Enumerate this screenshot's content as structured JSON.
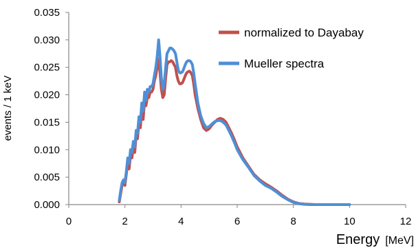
{
  "chart_data": {
    "type": "line",
    "xlabel": "Energy",
    "xlabel_unit": "[MeV]",
    "ylabel": "events / 1 keV",
    "xlim": [
      0,
      12
    ],
    "ylim": [
      0,
      0.035
    ],
    "xticks": [
      0,
      2,
      4,
      6,
      8,
      10,
      12
    ],
    "xtick_labels": [
      "0",
      "2",
      "4",
      "6",
      "8",
      "10",
      "12"
    ],
    "yticks": [
      0,
      0.005,
      0.01,
      0.015,
      0.02,
      0.025,
      0.03,
      0.035
    ],
    "ytick_labels": [
      "0.000",
      "0.005",
      "0.010",
      "0.015",
      "0.020",
      "0.025",
      "0.030",
      "0.035"
    ],
    "grid": false,
    "legend_position": "top-right",
    "series": [
      {
        "name": "normalized to Dayabay",
        "color": "#c0504d",
        "x": [
          1.8,
          1.85,
          1.9,
          1.95,
          2.0,
          2.05,
          2.1,
          2.15,
          2.2,
          2.25,
          2.3,
          2.35,
          2.4,
          2.45,
          2.5,
          2.55,
          2.6,
          2.65,
          2.7,
          2.75,
          2.8,
          2.85,
          2.9,
          2.95,
          3.0,
          3.05,
          3.1,
          3.15,
          3.2,
          3.25,
          3.3,
          3.35,
          3.4,
          3.45,
          3.5,
          3.55,
          3.6,
          3.65,
          3.7,
          3.75,
          3.8,
          3.85,
          3.9,
          3.95,
          4.0,
          4.05,
          4.1,
          4.15,
          4.2,
          4.25,
          4.3,
          4.35,
          4.4,
          4.45,
          4.5,
          4.6,
          4.7,
          4.8,
          4.9,
          5.0,
          5.1,
          5.2,
          5.3,
          5.4,
          5.5,
          5.6,
          5.7,
          5.8,
          5.9,
          6.0,
          6.2,
          6.4,
          6.6,
          6.8,
          7.0,
          7.2,
          7.4,
          7.6,
          7.8,
          8.0,
          8.2,
          8.4,
          8.6,
          8.8,
          9.0,
          9.5,
          10.0
        ],
        "y": [
          0.0005,
          0.002,
          0.0035,
          0.004,
          0.0035,
          0.0055,
          0.0075,
          0.0065,
          0.009,
          0.0085,
          0.0105,
          0.0095,
          0.0125,
          0.012,
          0.015,
          0.014,
          0.017,
          0.0155,
          0.019,
          0.018,
          0.0195,
          0.0195,
          0.0205,
          0.0205,
          0.021,
          0.0225,
          0.0235,
          0.025,
          0.0265,
          0.024,
          0.021,
          0.0195,
          0.02,
          0.023,
          0.0255,
          0.026,
          0.026,
          0.0262,
          0.026,
          0.0255,
          0.025,
          0.0235,
          0.0225,
          0.022,
          0.022,
          0.0222,
          0.0228,
          0.0235,
          0.024,
          0.0242,
          0.0243,
          0.024,
          0.0235,
          0.022,
          0.02,
          0.0175,
          0.0155,
          0.014,
          0.0135,
          0.0138,
          0.0145,
          0.015,
          0.0155,
          0.0157,
          0.0155,
          0.015,
          0.014,
          0.013,
          0.0118,
          0.0105,
          0.0085,
          0.007,
          0.0055,
          0.0045,
          0.0038,
          0.0032,
          0.0025,
          0.0017,
          0.001,
          0.0005,
          0.0002,
          0.0001,
          5e-05,
          0.0,
          0.0,
          0.0,
          0.0
        ]
      },
      {
        "name": "Mueller  spectra",
        "color": "#4f8fd6",
        "x": [
          1.8,
          1.85,
          1.9,
          1.95,
          2.0,
          2.05,
          2.1,
          2.15,
          2.2,
          2.25,
          2.3,
          2.35,
          2.4,
          2.45,
          2.5,
          2.55,
          2.6,
          2.65,
          2.7,
          2.75,
          2.8,
          2.85,
          2.9,
          2.95,
          3.0,
          3.05,
          3.1,
          3.15,
          3.2,
          3.25,
          3.3,
          3.35,
          3.4,
          3.45,
          3.5,
          3.55,
          3.6,
          3.65,
          3.7,
          3.75,
          3.8,
          3.85,
          3.9,
          3.95,
          4.0,
          4.05,
          4.1,
          4.15,
          4.2,
          4.25,
          4.3,
          4.35,
          4.4,
          4.45,
          4.5,
          4.6,
          4.7,
          4.8,
          4.9,
          5.0,
          5.1,
          5.2,
          5.3,
          5.4,
          5.5,
          5.6,
          5.7,
          5.8,
          5.9,
          6.0,
          6.2,
          6.4,
          6.6,
          6.8,
          7.0,
          7.2,
          7.4,
          7.6,
          7.8,
          8.0,
          8.2,
          8.4,
          8.6,
          8.8,
          9.0,
          9.5,
          10.0
        ],
        "y": [
          0.0008,
          0.0025,
          0.004,
          0.0045,
          0.004,
          0.006,
          0.0085,
          0.0075,
          0.01,
          0.0095,
          0.0115,
          0.0105,
          0.0135,
          0.013,
          0.016,
          0.015,
          0.0185,
          0.017,
          0.0205,
          0.019,
          0.021,
          0.0205,
          0.0215,
          0.0215,
          0.022,
          0.0235,
          0.025,
          0.027,
          0.03,
          0.027,
          0.023,
          0.021,
          0.022,
          0.025,
          0.0275,
          0.028,
          0.0285,
          0.0285,
          0.0283,
          0.028,
          0.0275,
          0.026,
          0.0245,
          0.024,
          0.024,
          0.0242,
          0.0248,
          0.0255,
          0.026,
          0.0262,
          0.0262,
          0.026,
          0.0255,
          0.024,
          0.022,
          0.0185,
          0.0162,
          0.0148,
          0.014,
          0.0142,
          0.0147,
          0.0151,
          0.0153,
          0.0153,
          0.015,
          0.0145,
          0.0135,
          0.0125,
          0.0113,
          0.01,
          0.0082,
          0.0068,
          0.0053,
          0.0043,
          0.0035,
          0.003,
          0.0023,
          0.0015,
          0.0009,
          0.0004,
          0.00015,
          5e-05,
          0.0,
          0.0,
          0.0,
          0.0,
          0.0
        ]
      }
    ]
  }
}
